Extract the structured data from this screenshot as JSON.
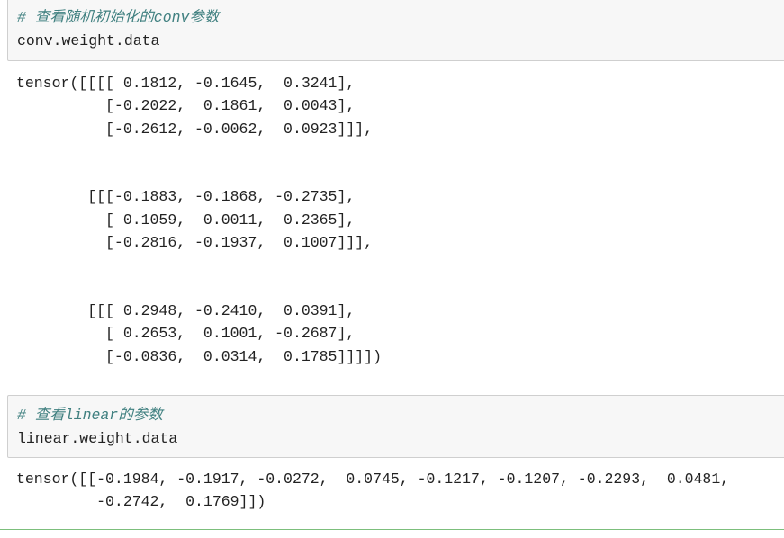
{
  "cells": [
    {
      "input": {
        "comment": "# 查看随机初始化的conv参数",
        "code": "conv.weight.data"
      },
      "output": "tensor([[[[ 0.1812, -0.1645,  0.3241],\n          [-0.2022,  0.1861,  0.0043],\n          [-0.2612, -0.0062,  0.0923]]],\n\n\n        [[[-0.1883, -0.1868, -0.2735],\n          [ 0.1059,  0.0011,  0.2365],\n          [-0.2816, -0.1937,  0.1007]]],\n\n\n        [[[ 0.2948, -0.2410,  0.0391],\n          [ 0.2653,  0.1001, -0.2687],\n          [-0.0836,  0.0314,  0.1785]]]])"
    },
    {
      "input": {
        "comment": "# 查看linear的参数",
        "code": "linear.weight.data"
      },
      "output": "tensor([[-0.1984, -0.1917, -0.0272,  0.0745, -0.1217, -0.1207, -0.2293,  0.0481,\n         -0.2742,  0.1769]])"
    }
  ],
  "colors": {
    "comment": "#408080",
    "input_bg": "#f7f7f7",
    "selected_border": "#7cbf7c"
  }
}
